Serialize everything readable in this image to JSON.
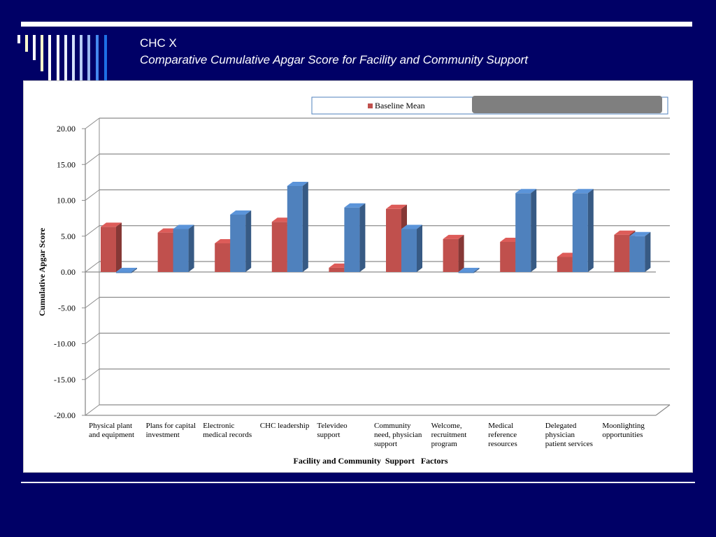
{
  "slide": {
    "title_line1": "CHC X",
    "title_line2": "Comparative Cumulative Apgar Score for Facility and Community Support"
  },
  "colors": {
    "background": "#000066",
    "baseline": "#c0504d",
    "second_series": "#4f81bd"
  },
  "chart_data": {
    "type": "bar",
    "title": "",
    "xlabel": "Facility and Community  Support   Factors",
    "ylabel": "Cumulative Apgar Score",
    "ylim": [
      -20,
      20
    ],
    "yticks": [
      "20.00",
      "15.00",
      "10.00",
      "5.00",
      "0.00",
      "-5.00",
      "-10.00",
      "-15.00",
      "-20.00"
    ],
    "grid": true,
    "legend_position": "top-right",
    "categories": [
      [
        "Physical plant",
        "and equipment"
      ],
      [
        "Plans for capital",
        "investment"
      ],
      [
        "Electronic",
        "medical records"
      ],
      [
        "CHC leadership"
      ],
      [
        "Televideo",
        "support"
      ],
      [
        "Community",
        "need, physician",
        "support"
      ],
      [
        "Welcome,",
        "recruitment",
        "program"
      ],
      [
        "Medical",
        "reference",
        "resources"
      ],
      [
        "Delegated",
        "physician",
        "patient services"
      ],
      [
        "Moonlighting",
        "opportunities"
      ]
    ],
    "series": [
      {
        "name": "Baseline Mean",
        "color": "#c0504d",
        "values": [
          6.3,
          5.5,
          4.0,
          7.0,
          0.6,
          8.8,
          4.6,
          4.2,
          2.1,
          5.2
        ]
      },
      {
        "color": "#4f81bd",
        "values": [
          0.0,
          6.0,
          8.0,
          12.0,
          9.0,
          6.0,
          0.0,
          11.0,
          11.0,
          5.0
        ]
      }
    ]
  }
}
